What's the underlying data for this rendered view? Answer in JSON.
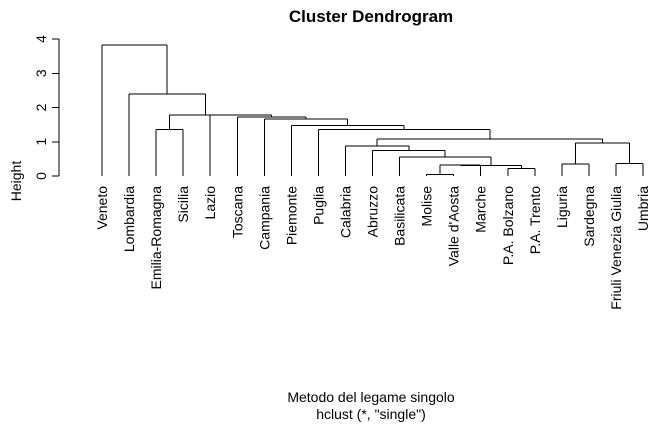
{
  "chart_data": {
    "type": "dendrogram",
    "title": "Cluster Dendrogram",
    "ylabel": "Height",
    "xlabel": "Metodo del legame singolo",
    "sub": "hclust (*, \"single\")",
    "ylim": [
      0,
      4
    ],
    "yticks": [
      "0",
      "1",
      "2",
      "3",
      "4"
    ],
    "labels": [
      "Veneto",
      "Lombardia",
      "Emilia-Romagna",
      "Sicilia",
      "Lazio",
      "Toscana",
      "Campania",
      "Piemonte",
      "Puglia",
      "Calabria",
      "Abruzzo",
      "Basilicata",
      "Molise",
      "Valle d'Aosta",
      "Marche",
      "P.A. Bolzano",
      "P.A. Trento",
      "Liguria",
      "Sardegna",
      "Friuli Venezia Giulia",
      "Umbria"
    ],
    "merges": [
      {
        "a": "Molise",
        "b": "Valle d'Aosta",
        "height": 0.04
      },
      {
        "a": "P.A. Bolzano",
        "b": "P.A. Trento",
        "height": 0.22
      },
      {
        "a": "Liguria",
        "b": "Sardegna",
        "height": 0.35
      },
      {
        "a": "Friuli Venezia Giulia",
        "b": "Umbria",
        "height": 0.37
      },
      {
        "a": "Marche",
        "b": "(Molise, Valle d'Aosta)",
        "height": 0.32
      },
      {
        "a": "(Marche, Molise, Valle d'Aosta)",
        "b": "(P.A. Bolzano, P.A. Trento)",
        "height": 0.31
      },
      {
        "a": "Basilicata",
        "b": "(Marche … P.A. Trento)",
        "height": 0.55
      },
      {
        "a": "Abruzzo",
        "b": "(Basilicata … P.A. Trento)",
        "height": 0.74
      },
      {
        "a": "(Liguria, Sardegna)",
        "b": "(Friuli Venezia Giulia, Umbria)",
        "height": 0.97
      },
      {
        "a": "Calabria",
        "b": "(Abruzzo … P.A. Trento)",
        "height": 0.88
      },
      {
        "a": "(Calabria … P.A. Trento)",
        "b": "(Liguria … Umbria)",
        "height": 1.08
      },
      {
        "a": "Puglia",
        "b": "(Calabria … Umbria)",
        "height": 1.36
      },
      {
        "a": "Emilia-Romagna",
        "b": "Sicilia",
        "height": 1.36
      },
      {
        "a": "Piemonte",
        "b": "(Puglia … Umbria)",
        "height": 1.48
      },
      {
        "a": "Campania",
        "b": "(Piemonte … Umbria)",
        "height": 1.67
      },
      {
        "a": "Toscana",
        "b": "(Campania … Umbria)",
        "height": 1.72
      },
      {
        "a": "Lazio",
        "b": "(Toscana … Umbria)",
        "height": 1.78
      },
      {
        "a": "(Emilia-Romagna, Sicilia)",
        "b": "(Lazio … Umbria)",
        "height": 1.78
      },
      {
        "a": "Lombardia",
        "b": "(Emilia-Romagna … Umbria)",
        "height": 2.4
      },
      {
        "a": "Veneto",
        "b": "(Lombardia … Umbria)",
        "height": 3.82
      }
    ]
  }
}
